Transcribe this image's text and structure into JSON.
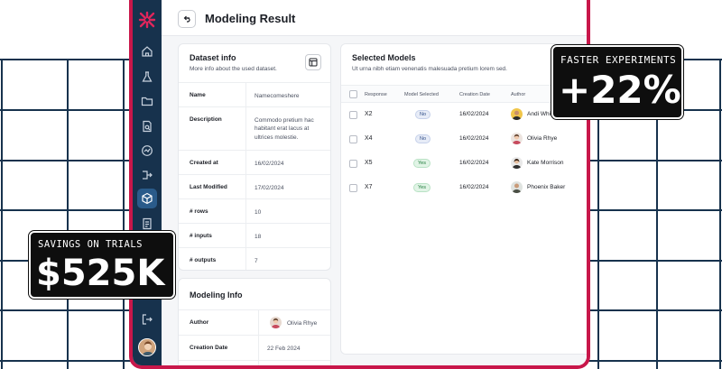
{
  "page": {
    "title": "Modeling Result"
  },
  "colors": {
    "accent_border": "#c8174a",
    "sidebar": "#17324d",
    "badge_bg": "#0e0e0e",
    "grid_line": "#17324d"
  },
  "sidebar": {
    "items": [
      {
        "icon": "home-icon"
      },
      {
        "icon": "flask-icon"
      },
      {
        "icon": "folder-icon"
      },
      {
        "icon": "document-search-icon"
      },
      {
        "icon": "chart-circle-icon"
      },
      {
        "icon": "flow-icon"
      },
      {
        "icon": "cube-icon",
        "active": true
      },
      {
        "icon": "file-icon"
      },
      {
        "icon": "logout-icon"
      }
    ]
  },
  "dataset_info": {
    "title": "Dataset info",
    "subtitle": "More info about the used dataset.",
    "rows": [
      {
        "key": "Name",
        "value": "Namecomeshere"
      },
      {
        "key": "Description",
        "value": "Commodo pretium hac habitant erat lacus at ultrices molestie."
      },
      {
        "key": "Created at",
        "value": "16/02/2024"
      },
      {
        "key": "Last Modified",
        "value": "17/02/2024"
      },
      {
        "key": "# rows",
        "value": "10"
      },
      {
        "key": "# inputs",
        "value": "18"
      },
      {
        "key": "# outputs",
        "value": "7"
      }
    ]
  },
  "modeling_info": {
    "title": "Modeling Info",
    "rows": [
      {
        "key": "Author",
        "value": "Olivia Rhye"
      },
      {
        "key": "Creation Date",
        "value": "22 Feb 2024"
      }
    ]
  },
  "selected_models": {
    "title": "Selected Models",
    "subtitle": "Ut urna nibh etiam venenatis malesuada pretium lorem sed.",
    "columns": [
      "Response",
      "Model Selected",
      "Creation Date",
      "Author"
    ],
    "rows": [
      {
        "response": "X2",
        "selected": "No",
        "date": "16/02/2024",
        "author": "Andi Whi"
      },
      {
        "response": "X4",
        "selected": "No",
        "date": "16/02/2024",
        "author": "Olivia Rhye"
      },
      {
        "response": "X5",
        "selected": "Yes",
        "date": "16/02/2024",
        "author": "Kate Morrison"
      },
      {
        "response": "X7",
        "selected": "Yes",
        "date": "16/02/2024",
        "author": "Phoenix Baker"
      }
    ]
  },
  "badges": {
    "faster": {
      "label": "FASTER EXPERIMENTS",
      "value": "+22%"
    },
    "savings": {
      "label": "SAVINGS ON TRIALS",
      "value": "$525K"
    }
  }
}
